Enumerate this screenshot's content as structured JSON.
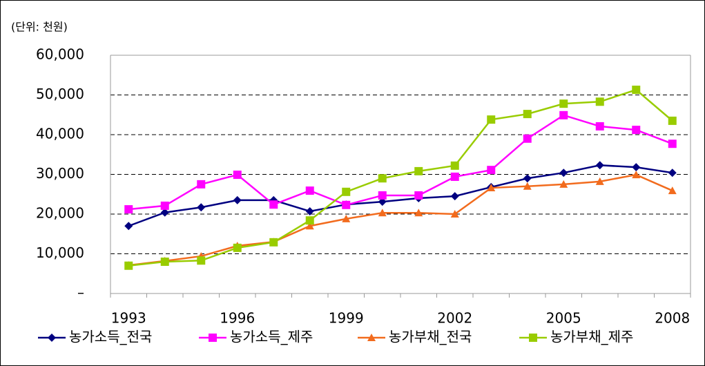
{
  "chart_data": {
    "type": "line",
    "subtitle": "(단위: 천원)",
    "categories": [
      "1993",
      null,
      null,
      "1996",
      null,
      null,
      "1999",
      null,
      null,
      "2002",
      null,
      null,
      "2005",
      null,
      null,
      "2008"
    ],
    "series": [
      {
        "name": "농가소득_전국",
        "color": "#000080",
        "marker": "diamond",
        "values": [
          17000,
          20400,
          21700,
          23500,
          23500,
          20700,
          22400,
          23100,
          24000,
          24500,
          26800,
          29000,
          30400,
          32300,
          31800,
          30400
        ]
      },
      {
        "name": "농가소득_제주",
        "color": "#ff00ff",
        "marker": "square",
        "values": [
          21200,
          22100,
          27500,
          29900,
          22400,
          25900,
          22300,
          24700,
          24700,
          29400,
          31100,
          39000,
          44900,
          42100,
          41200,
          37700
        ]
      },
      {
        "name": "농가부채_전국",
        "color": "#f26b1d",
        "marker": "triangle",
        "values": [
          7100,
          8200,
          9400,
          12000,
          13000,
          17000,
          18800,
          20300,
          20300,
          20000,
          26600,
          27000,
          27500,
          28200,
          29900,
          25900
        ]
      },
      {
        "name": "농가부채_제주",
        "color": "#99cc00",
        "marker": "square",
        "values": [
          7000,
          8000,
          8300,
          11500,
          12900,
          18400,
          25600,
          29000,
          30800,
          32200,
          43800,
          45200,
          47800,
          48300,
          51300,
          43500
        ]
      }
    ],
    "ylim": [
      0,
      60000
    ],
    "yticks": [
      {
        "value": 0,
        "label": "–"
      },
      {
        "value": 10000,
        "label": "10,000"
      },
      {
        "value": 20000,
        "label": "20,000"
      },
      {
        "value": 30000,
        "label": "30,000"
      },
      {
        "value": 40000,
        "label": "40,000"
      },
      {
        "value": 50000,
        "label": "50,000"
      },
      {
        "value": 60000,
        "label": "60,000"
      }
    ],
    "grid": true,
    "legend": "bottom"
  }
}
